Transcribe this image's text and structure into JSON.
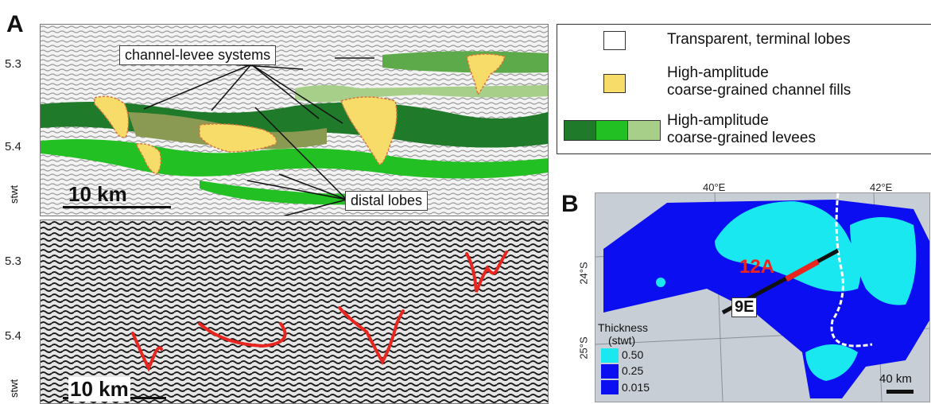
{
  "panelA": {
    "letter": "A",
    "yticks_top": [
      "5.3",
      "5.4"
    ],
    "yticks_bottom": [
      "5.3",
      "5.4"
    ],
    "axis_label": "stwt",
    "callout_channel": "channel-levee systems",
    "callout_distal": "distal lobes",
    "scale_top": "10 km",
    "scale_bottom": "10 km"
  },
  "legend": {
    "item1": "Transparent, terminal lobes",
    "item2_line1": "High-amplitude",
    "item2_line2": "coarse-grained channel fills",
    "item3_line1": "High-amplitude",
    "item3_line2": "coarse-grained levees"
  },
  "panelB": {
    "letter": "B",
    "lon1": "40°E",
    "lon2": "42°E",
    "lat1": "24°S",
    "lat2": "25°S",
    "line_label1": "12A",
    "line_label2": "9E",
    "thickness_title1": "Thickness",
    "thickness_title2": "(stwt)",
    "thick_values": [
      "0.50",
      "0.25",
      "0.015"
    ],
    "scale": "40 km"
  },
  "colors": {
    "dark_green": "#1f7a2a",
    "mid_green": "#22c022",
    "light_green": "#a7cf8a",
    "yellow": "#f7dc6a",
    "cyan": "#19e8f0",
    "blue": "#0a0ef0",
    "red": "#e8261f"
  }
}
